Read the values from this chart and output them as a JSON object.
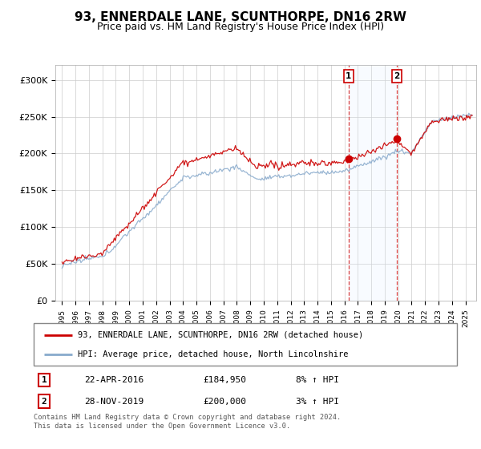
{
  "title": "93, ENNERDALE LANE, SCUNTHORPE, DN16 2RW",
  "subtitle": "Price paid vs. HM Land Registry's House Price Index (HPI)",
  "ylim": [
    0,
    320000
  ],
  "yticks": [
    0,
    50000,
    100000,
    150000,
    200000,
    250000,
    300000
  ],
  "ytick_labels": [
    "£0",
    "£50K",
    "£100K",
    "£150K",
    "£200K",
    "£250K",
    "£300K"
  ],
  "line1_color": "#cc0000",
  "line2_color": "#88aacc",
  "shade_color": "#ddeeff",
  "sale1_date_num": 2016.31,
  "sale2_date_num": 2019.91,
  "sale1_price": 184950,
  "sale2_price": 200000,
  "sale1_label": "1",
  "sale2_label": "2",
  "sale1_date_str": "22-APR-2016",
  "sale2_date_str": "28-NOV-2019",
  "sale1_hpi": "8% ↑ HPI",
  "sale2_hpi": "3% ↑ HPI",
  "legend_line1": "93, ENNERDALE LANE, SCUNTHORPE, DN16 2RW (detached house)",
  "legend_line2": "HPI: Average price, detached house, North Lincolnshire",
  "footer": "Contains HM Land Registry data © Crown copyright and database right 2024.\nThis data is licensed under the Open Government Licence v3.0.",
  "background_color": "#ffffff",
  "grid_color": "#cccccc",
  "title_fontsize": 11,
  "subtitle_fontsize": 9,
  "tick_fontsize": 8,
  "sale1_hpi_value": 171000,
  "sale2_hpi_value": 194000
}
